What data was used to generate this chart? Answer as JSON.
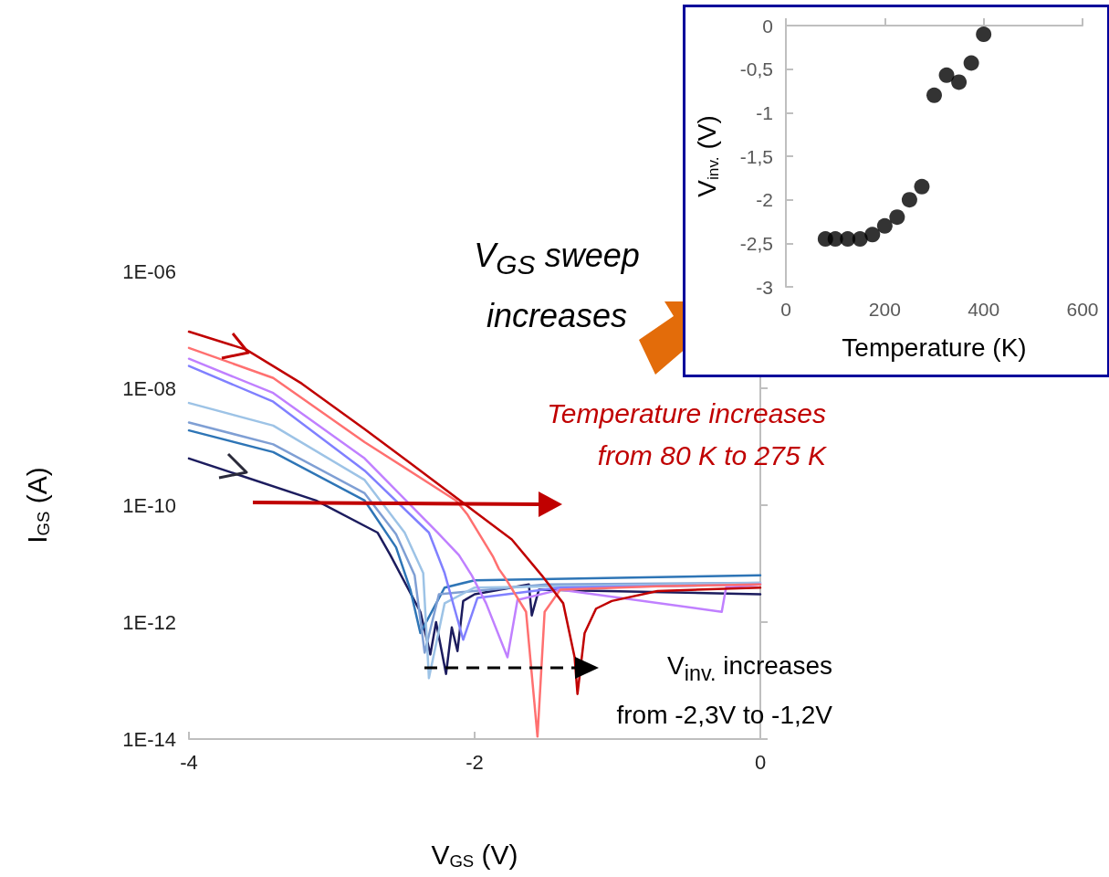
{
  "chart_data": [
    {
      "type": "line",
      "xlabel": "V$_{GS}$ (V)",
      "ylabel": "I$_{GS}$ (A)",
      "log": "y",
      "grid": false,
      "marker": "none",
      "line_style": "solid",
      "xlim": [
        -4,
        0
      ],
      "xticks": [
        -4,
        -2,
        0
      ],
      "ylim": [
        1e-14,
        1e-06
      ],
      "yticks": [
        {
          "value": 1e-06,
          "label": "1E-06"
        },
        {
          "value": 1e-08,
          "label": "1E-08"
        },
        {
          "value": 1e-10,
          "label": "1E-10"
        },
        {
          "value": 1e-12,
          "label": "1E-12"
        },
        {
          "value": 1e-14,
          "label": "1E-14"
        }
      ],
      "annotations": [
        "V$_{GS}$ sweep increases",
        "Temperature increases from 80 K to 275 K",
        "V$_{inv.}$ increases from -2,3V to -1,2V"
      ],
      "series": [
        {
          "color": "#1c1c5e",
          "x": [
            -4,
            -3.11,
            -2.68,
            -2.59,
            -2.38,
            -2.31,
            -2.27,
            -2.2,
            -2.16,
            -2.12,
            -2.08,
            -2,
            -1.62,
            -1.6,
            -1.55,
            0
          ],
          "values": [
            6.3e-10,
            1.2e-10,
            3.4e-11,
            1.4e-11,
            1.5e-12,
            2.8e-13,
            1e-12,
            1.3e-13,
            8.1e-13,
            3.2e-13,
            2.3e-12,
            3e-12,
            4.4e-12,
            1.3e-12,
            3.6e-12,
            3e-12
          ]
        },
        {
          "color": "#2e75b6",
          "x": [
            -4,
            -3.41,
            -2.77,
            -2.55,
            -2.45,
            -2.38,
            -2.21,
            -2,
            0
          ],
          "values": [
            1.9e-09,
            8.1e-10,
            1.2e-10,
            1.9e-11,
            3.6e-12,
            6.5e-13,
            3.9e-12,
            5.2e-12,
            6.3e-12
          ]
        },
        {
          "color": "#7f9fd4",
          "x": [
            -4,
            -3.41,
            -2.77,
            -2.55,
            -2.42,
            -2.35,
            -2.25,
            -1.5,
            0
          ],
          "values": [
            2.6e-09,
            1.1e-09,
            1.6e-10,
            3.2e-11,
            6.3e-12,
            3e-13,
            3e-12,
            4.4e-12,
            4.7e-12
          ]
        },
        {
          "color": "#9dc3e6",
          "x": [
            -4,
            -3.41,
            -2.77,
            -2.49,
            -2.36,
            -2.32,
            -2.21,
            -2,
            0
          ],
          "values": [
            5.6e-09,
            2.3e-09,
            2.7e-10,
            3.4e-11,
            6.9e-12,
            1.1e-13,
            2.1e-12,
            3.9e-12,
            4.7e-12
          ]
        },
        {
          "color": "#8080ff",
          "x": [
            -4,
            -3.41,
            -2.77,
            -2.32,
            -2.21,
            -2.08,
            -1.98,
            -1.4,
            0
          ],
          "values": [
            2.4e-08,
            5.9e-09,
            3.9e-10,
            3.4e-11,
            6.9e-12,
            5e-13,
            2.6e-12,
            3.9e-12,
            4.4e-12
          ]
        },
        {
          "color": "#c080ff",
          "x": [
            -4,
            -3.41,
            -2.77,
            -2.26,
            -2.11,
            -2.02,
            -1.92,
            -1.77,
            -1.7,
            -1.4,
            -0.27,
            -0.24,
            0
          ],
          "values": [
            3.2e-08,
            8.3e-09,
            6.3e-10,
            3.4e-11,
            1.4e-11,
            6.3e-12,
            2.1e-12,
            2.5e-13,
            2.4e-12,
            3.6e-12,
            1.5e-12,
            3.9e-12,
            4.4e-12
          ]
        },
        {
          "color": "#ff7070",
          "x": [
            -4,
            -3.41,
            -2.77,
            -2.13,
            -2.05,
            -1.87,
            -1.83,
            -1.79,
            -1.64,
            -1.56,
            -1.51,
            -1.4,
            -0.72,
            0
          ],
          "values": [
            4.9e-08,
            1.5e-08,
            1.2e-09,
            1.2e-10,
            6.9e-11,
            1.3e-11,
            8.1e-12,
            5.9e-12,
            1.5e-12,
            1.1e-14,
            1.5e-12,
            3.6e-12,
            4.1e-12,
            4.4e-12
          ]
        },
        {
          "color": "#c00000",
          "x": [
            -4,
            -3.6,
            -3.21,
            -2.77,
            -2.38,
            -2,
            -1.74,
            -1.53,
            -1.38,
            -1.3,
            -1.28,
            -1.23,
            -1.15,
            -1.04,
            -0.72,
            0
          ],
          "values": [
            9.3e-08,
            4.6e-08,
            1.2e-08,
            2e-09,
            3.9e-10,
            7.8e-11,
            2.6e-11,
            6.3e-12,
            2.1e-12,
            2.5e-13,
            5.9e-14,
            6.5e-13,
            1.7e-12,
            2.3e-12,
            3.4e-12,
            3.9e-12
          ]
        }
      ]
    },
    {
      "type": "scatter",
      "xlabel": "Temperature (K)",
      "ylabel": "V$_{inv.}$ (V)",
      "grid": false,
      "marker": "circle",
      "xlim": [
        0,
        600
      ],
      "xticks": [
        0,
        200,
        400,
        600
      ],
      "ylim": [
        -3,
        0
      ],
      "yticks": [
        0,
        {
          "value": -0.5,
          "label": "-0,5"
        },
        -1,
        {
          "value": -1.5,
          "label": "-1,5"
        },
        -2,
        {
          "value": -2.5,
          "label": "-2,5"
        },
        -3
      ],
      "series": [
        {
          "color": "#000000",
          "x": [
            80,
            100,
            125,
            150,
            175,
            200,
            225,
            250,
            275,
            300,
            325,
            350,
            375,
            400
          ],
          "values": [
            -2.45,
            -2.45,
            -2.45,
            -2.45,
            -2.4,
            -2.3,
            -2.2,
            -2,
            -1.85,
            -0.8,
            -0.57,
            -0.65,
            -0.43,
            -0.1
          ]
        }
      ]
    }
  ]
}
